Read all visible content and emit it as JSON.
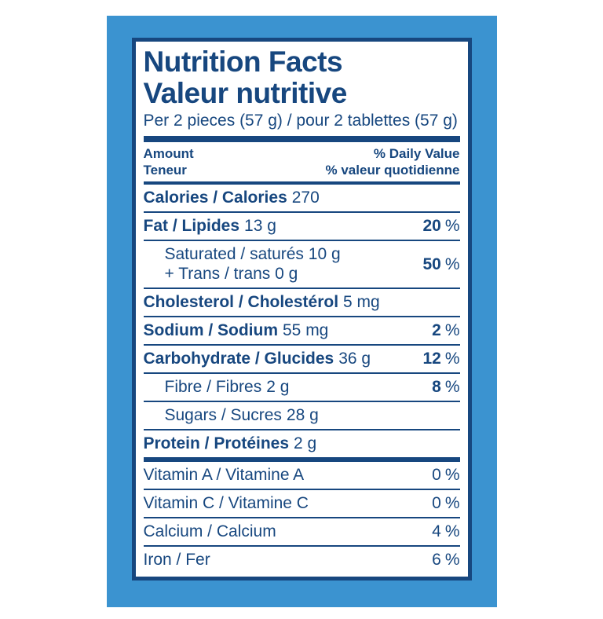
{
  "colors": {
    "card_blue": "#3b93d0",
    "text_navy": "#17477f",
    "panel_bg": "#ffffff"
  },
  "label": {
    "title_en": "Nutrition Facts",
    "title_fr": "Valeur nutritive",
    "serving": "Per 2 pieces (57 g) / pour 2 tablettes (57 g)",
    "percent_sign": "%",
    "header": {
      "amount_en": "Amount",
      "amount_fr": "Teneur",
      "dv_en": "% Daily Value",
      "dv_fr": "% valeur quotidienne"
    },
    "rows": [
      {
        "name": "Calories / Calories",
        "value": "270",
        "dv": ""
      },
      {
        "name": "Fat / Lipides",
        "value": "13 g",
        "dv": "20"
      },
      {
        "line1": "Saturated / saturés 10 g",
        "line2": "+ Trans / trans 0 g",
        "dv": "50"
      },
      {
        "name": "Cholesterol / Cholestérol",
        "value": "5 mg",
        "dv": ""
      },
      {
        "name": "Sodium / Sodium",
        "value": "55 mg",
        "dv": "2"
      },
      {
        "name": "Carbohydrate / Glucides",
        "value": "36 g",
        "dv": "12"
      },
      {
        "name": "Fibre / Fibres",
        "value": "2 g",
        "dv": "8"
      },
      {
        "name": "Sugars / Sucres",
        "value": "28 g",
        "dv": ""
      },
      {
        "name": "Protein / Protéines",
        "value": "2 g",
        "dv": ""
      }
    ],
    "micronutrients": [
      {
        "name": "Vitamin A / Vitamine A",
        "dv": "0"
      },
      {
        "name": "Vitamin C / Vitamine C",
        "dv": "0"
      },
      {
        "name": "Calcium / Calcium",
        "dv": "4"
      },
      {
        "name": "Iron / Fer",
        "dv": "6"
      }
    ]
  }
}
